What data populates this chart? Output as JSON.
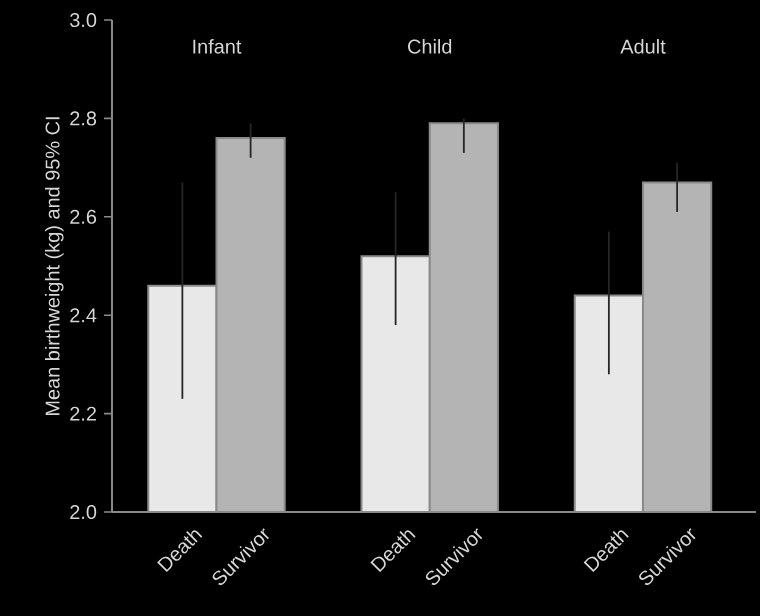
{
  "chart_data": {
    "type": "bar",
    "ylabel": "Mean birthweight (kg) and 95% CI",
    "categories": [
      "Infant",
      "Child",
      "Adult"
    ],
    "series": [
      {
        "name": "Death",
        "color": "#e8e8e8",
        "values": [
          2.46,
          2.52,
          2.44
        ],
        "errors": [
          [
            2.23,
            2.67
          ],
          [
            2.38,
            2.65
          ],
          [
            2.28,
            2.57
          ]
        ]
      },
      {
        "name": "Survivor",
        "color": "#b4b4b4",
        "values": [
          2.76,
          2.79,
          2.67
        ],
        "errors": [
          [
            2.72,
            2.79
          ],
          [
            2.73,
            2.8
          ],
          [
            2.61,
            2.71
          ]
        ]
      }
    ],
    "ylim": [
      2.0,
      3.0
    ],
    "yticks": [
      {
        "value": 2.0,
        "label": "2.0"
      },
      {
        "value": 2.2,
        "label": "2.2"
      },
      {
        "value": 2.4,
        "label": "2.4"
      },
      {
        "value": 2.6,
        "label": "2.6"
      },
      {
        "value": 2.8,
        "label": "2.8"
      },
      {
        "value": 3.0,
        "label": "3.0"
      }
    ]
  }
}
